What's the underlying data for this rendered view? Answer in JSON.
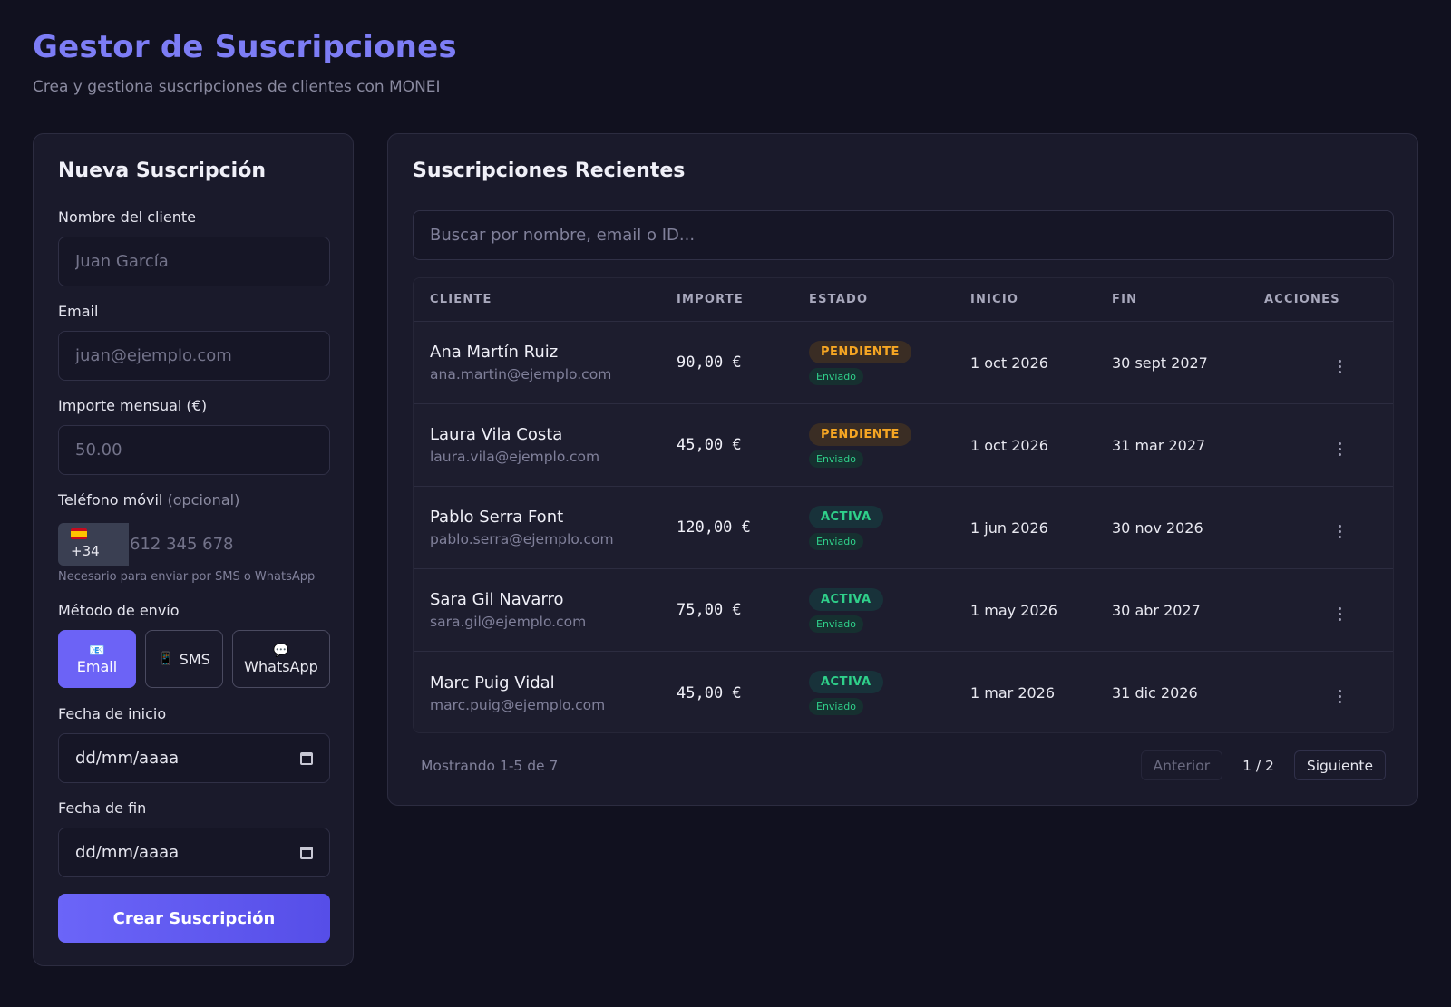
{
  "header": {
    "title": "Gestor de Suscripciones",
    "subtitle": "Crea y gestiona suscripciones de clientes con MONEI"
  },
  "form": {
    "title": "Nueva Suscripción",
    "name_label": "Nombre del cliente",
    "name_placeholder": "Juan García",
    "email_label": "Email",
    "email_placeholder": "juan@ejemplo.com",
    "amount_label": "Importe mensual (€)",
    "amount_placeholder": "50.00",
    "phone_label": "Teléfono móvil",
    "phone_optional": "(opcional)",
    "country_code": "+34",
    "phone_placeholder": "612 345 678",
    "phone_help": "Necesario para enviar por SMS o WhatsApp",
    "method_label": "Método de envío",
    "methods": [
      {
        "label": "Email",
        "icon": "📧",
        "active": true
      },
      {
        "label": "SMS",
        "icon": "📱",
        "active": false
      },
      {
        "label": "WhatsApp",
        "icon": "💬",
        "active": false
      }
    ],
    "start_label": "Fecha de inicio",
    "start_value": "dd/mm/aaaa",
    "end_label": "Fecha de fin",
    "end_value": "dd/mm/aaaa",
    "submit_label": "Crear Suscripción"
  },
  "table": {
    "title": "Suscripciones Recientes",
    "search_placeholder": "Buscar por nombre, email o ID...",
    "columns": [
      "CLIENTE",
      "IMPORTE",
      "ESTADO",
      "INICIO",
      "FIN",
      "ACCIONES"
    ],
    "rows": [
      {
        "name": "Ana Martín Ruiz",
        "email": "ana.martin@ejemplo.com",
        "amount": "90,00 €",
        "status": "PENDIENTE",
        "status_kind": "pendiente",
        "sent": "Enviado",
        "start": "1 oct 2026",
        "end": "30 sept 2027"
      },
      {
        "name": "Laura Vila Costa",
        "email": "laura.vila@ejemplo.com",
        "amount": "45,00 €",
        "status": "PENDIENTE",
        "status_kind": "pendiente",
        "sent": "Enviado",
        "start": "1 oct 2026",
        "end": "31 mar 2027"
      },
      {
        "name": "Pablo Serra Font",
        "email": "pablo.serra@ejemplo.com",
        "amount": "120,00 €",
        "status": "ACTIVA",
        "status_kind": "activa",
        "sent": "Enviado",
        "start": "1 jun 2026",
        "end": "30 nov 2026"
      },
      {
        "name": "Sara Gil Navarro",
        "email": "sara.gil@ejemplo.com",
        "amount": "75,00 €",
        "status": "ACTIVA",
        "status_kind": "activa",
        "sent": "Enviado",
        "start": "1 may 2026",
        "end": "30 abr 2027"
      },
      {
        "name": "Marc Puig Vidal",
        "email": "marc.puig@ejemplo.com",
        "amount": "45,00 €",
        "status": "ACTIVA",
        "status_kind": "activa",
        "sent": "Enviado",
        "start": "1 mar 2026",
        "end": "31 dic 2026"
      }
    ],
    "pagination": {
      "info": "Mostrando 1-5 de 7",
      "prev_label": "Anterior",
      "page": "1 / 2",
      "next_label": "Siguiente"
    }
  },
  "colors": {
    "accent": "#6c63f6",
    "title": "#7d7df5",
    "pending": "#f6a623",
    "active": "#2fd08a"
  }
}
